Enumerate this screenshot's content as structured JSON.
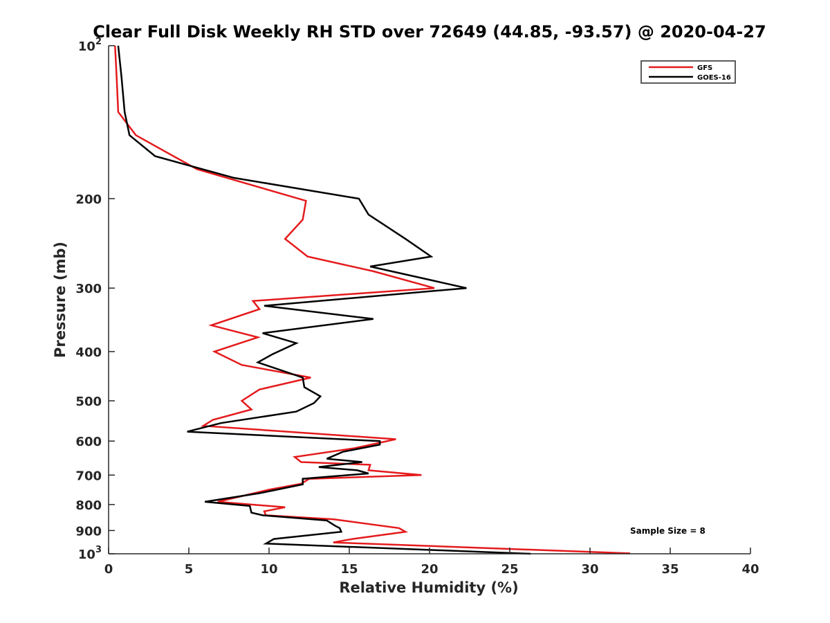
{
  "chart_data": {
    "type": "line",
    "title": "Clear Full Disk Weekly RH STD over 72649 (44.85, -93.57) @ 2020-04-27",
    "xlabel": "Relative Humidity (%)",
    "ylabel": "Pressure (mb)",
    "xlim": [
      0,
      40
    ],
    "ylim": [
      100,
      1000
    ],
    "yscale": "log",
    "y_reversed": true,
    "grid": false,
    "legend_position": "top-right",
    "x_ticks": [
      "0",
      "5",
      "10",
      "15",
      "20",
      "25",
      "30",
      "35",
      "40"
    ],
    "y_ticks": [
      {
        "value": 100,
        "base": "10",
        "exp": "2"
      },
      {
        "value": 200,
        "label": "200"
      },
      {
        "value": 300,
        "label": "300"
      },
      {
        "value": 400,
        "label": "400"
      },
      {
        "value": 500,
        "label": "500"
      },
      {
        "value": 600,
        "label": "600"
      },
      {
        "value": 700,
        "label": "700"
      },
      {
        "value": 800,
        "label": "800"
      },
      {
        "value": 900,
        "label": "900"
      },
      {
        "value": 1000,
        "base": "10",
        "exp": "3"
      }
    ],
    "annotation": "Sample Size = 8",
    "series": [
      {
        "name": "GFS",
        "color": "#e41a1c",
        "points": [
          [
            0.4,
            100
          ],
          [
            0.5,
            115
          ],
          [
            0.6,
            135
          ],
          [
            1.7,
            150
          ],
          [
            5.5,
            175
          ],
          [
            12.3,
            202
          ],
          [
            12.1,
            220
          ],
          [
            11.0,
            240
          ],
          [
            12.4,
            260
          ],
          [
            16.5,
            278
          ],
          [
            20.3,
            300
          ],
          [
            9.0,
            318
          ],
          [
            9.4,
            330
          ],
          [
            6.4,
            355
          ],
          [
            9.3,
            375
          ],
          [
            6.6,
            400
          ],
          [
            8.3,
            425
          ],
          [
            12.6,
            450
          ],
          [
            9.4,
            475
          ],
          [
            8.3,
            500
          ],
          [
            8.9,
            520
          ],
          [
            6.5,
            545
          ],
          [
            5.9,
            560
          ],
          [
            17.9,
            595
          ],
          [
            15.3,
            620
          ],
          [
            11.6,
            645
          ],
          [
            12.0,
            660
          ],
          [
            16.3,
            668
          ],
          [
            16.2,
            685
          ],
          [
            19.5,
            700
          ],
          [
            12.5,
            712
          ],
          [
            12.0,
            728
          ],
          [
            10.0,
            748
          ],
          [
            6.8,
            790
          ],
          [
            11.0,
            810
          ],
          [
            9.7,
            825
          ],
          [
            9.8,
            840
          ],
          [
            14.0,
            855
          ],
          [
            18.1,
            890
          ],
          [
            18.5,
            905
          ],
          [
            15.2,
            935
          ],
          [
            14.0,
            950
          ],
          [
            32.5,
            998
          ]
        ]
      },
      {
        "name": "GOES-16",
        "color": "#000000",
        "points": [
          [
            0.6,
            100
          ],
          [
            0.8,
            115
          ],
          [
            1.0,
            135
          ],
          [
            1.3,
            150
          ],
          [
            2.9,
            165
          ],
          [
            7.8,
            182
          ],
          [
            15.6,
            200
          ],
          [
            16.2,
            215
          ],
          [
            18.5,
            240
          ],
          [
            20.1,
            260
          ],
          [
            16.3,
            272
          ],
          [
            22.3,
            300
          ],
          [
            9.7,
            325
          ],
          [
            16.5,
            345
          ],
          [
            9.6,
            368
          ],
          [
            11.7,
            385
          ],
          [
            10.2,
            405
          ],
          [
            9.3,
            420
          ],
          [
            12.1,
            450
          ],
          [
            12.2,
            470
          ],
          [
            13.2,
            490
          ],
          [
            12.8,
            505
          ],
          [
            11.7,
            525
          ],
          [
            7.0,
            553
          ],
          [
            4.9,
            575
          ],
          [
            16.9,
            600
          ],
          [
            16.9,
            610
          ],
          [
            14.6,
            630
          ],
          [
            13.6,
            650
          ],
          [
            15.8,
            660
          ],
          [
            13.1,
            675
          ],
          [
            15.5,
            685
          ],
          [
            16.2,
            695
          ],
          [
            12.1,
            712
          ],
          [
            12.1,
            730
          ],
          [
            9.4,
            760
          ],
          [
            6.0,
            790
          ],
          [
            8.8,
            805
          ],
          [
            8.9,
            830
          ],
          [
            9.6,
            840
          ],
          [
            13.6,
            860
          ],
          [
            14.1,
            880
          ],
          [
            14.4,
            890
          ],
          [
            14.5,
            905
          ],
          [
            10.3,
            935
          ],
          [
            9.8,
            955
          ],
          [
            26.3,
            1000
          ]
        ]
      }
    ]
  }
}
